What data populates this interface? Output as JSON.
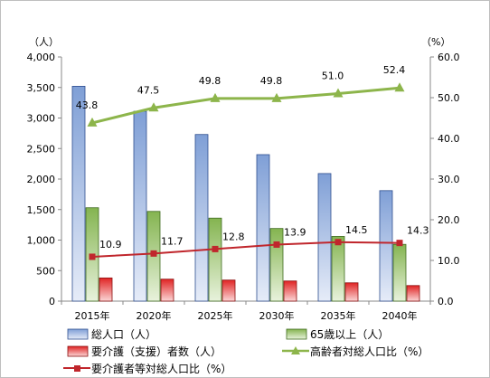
{
  "chart_data": {
    "type": "bar",
    "categories": [
      "2015年",
      "2020年",
      "2025年",
      "2030年",
      "2035年",
      "2040年"
    ],
    "left_axis": {
      "unit": "（人）",
      "range": [
        0,
        4000
      ],
      "ticks": [
        "0",
        "500",
        "1,000",
        "1,500",
        "2,000",
        "2,500",
        "3,000",
        "3,500",
        "4,000"
      ]
    },
    "right_axis": {
      "unit": "（%）",
      "range": [
        0,
        60
      ],
      "ticks": [
        "0.0",
        "10.0",
        "20.0",
        "30.0",
        "40.0",
        "50.0",
        "60.0"
      ]
    },
    "series": [
      {
        "name": "総人口（人）",
        "kind": "bar",
        "axis": "left",
        "color": "#8eaadb",
        "values": [
          3520,
          3110,
          2730,
          2400,
          2090,
          1810
        ]
      },
      {
        "name": "65歳以上（人）",
        "kind": "bar",
        "axis": "left",
        "color": "#8fbd59",
        "values": [
          1530,
          1470,
          1360,
          1190,
          1060,
          930
        ]
      },
      {
        "name": "要介護（支援）者数（人）",
        "kind": "bar",
        "axis": "left",
        "color": "#e03030",
        "values": [
          380,
          360,
          345,
          330,
          300,
          255
        ]
      },
      {
        "name": "高齢者対総人口比（%）",
        "kind": "line",
        "axis": "right",
        "color": "#8db54b",
        "marker": "triangle",
        "values": [
          43.8,
          47.5,
          49.8,
          49.8,
          51.0,
          52.4
        ],
        "labels": [
          "43.8",
          "47.5",
          "49.8",
          "49.8",
          "51.0",
          "52.4"
        ]
      },
      {
        "name": "要介護者等対総人口比（%）",
        "kind": "line",
        "axis": "right",
        "color": "#c0262c",
        "marker": "square",
        "values": [
          10.9,
          11.7,
          12.8,
          13.9,
          14.5,
          14.3
        ],
        "labels": [
          "10.9",
          "11.7",
          "12.8",
          "13.9",
          "14.5",
          "14.3"
        ]
      }
    ],
    "legend": {
      "position": "bottom",
      "items": [
        "総人口（人）",
        "65歳以上（人）",
        "要介護（支援）者数（人）",
        "高齢者対総人口比（%）",
        "要介護者等対総人口比（%）"
      ]
    },
    "grid": false
  }
}
